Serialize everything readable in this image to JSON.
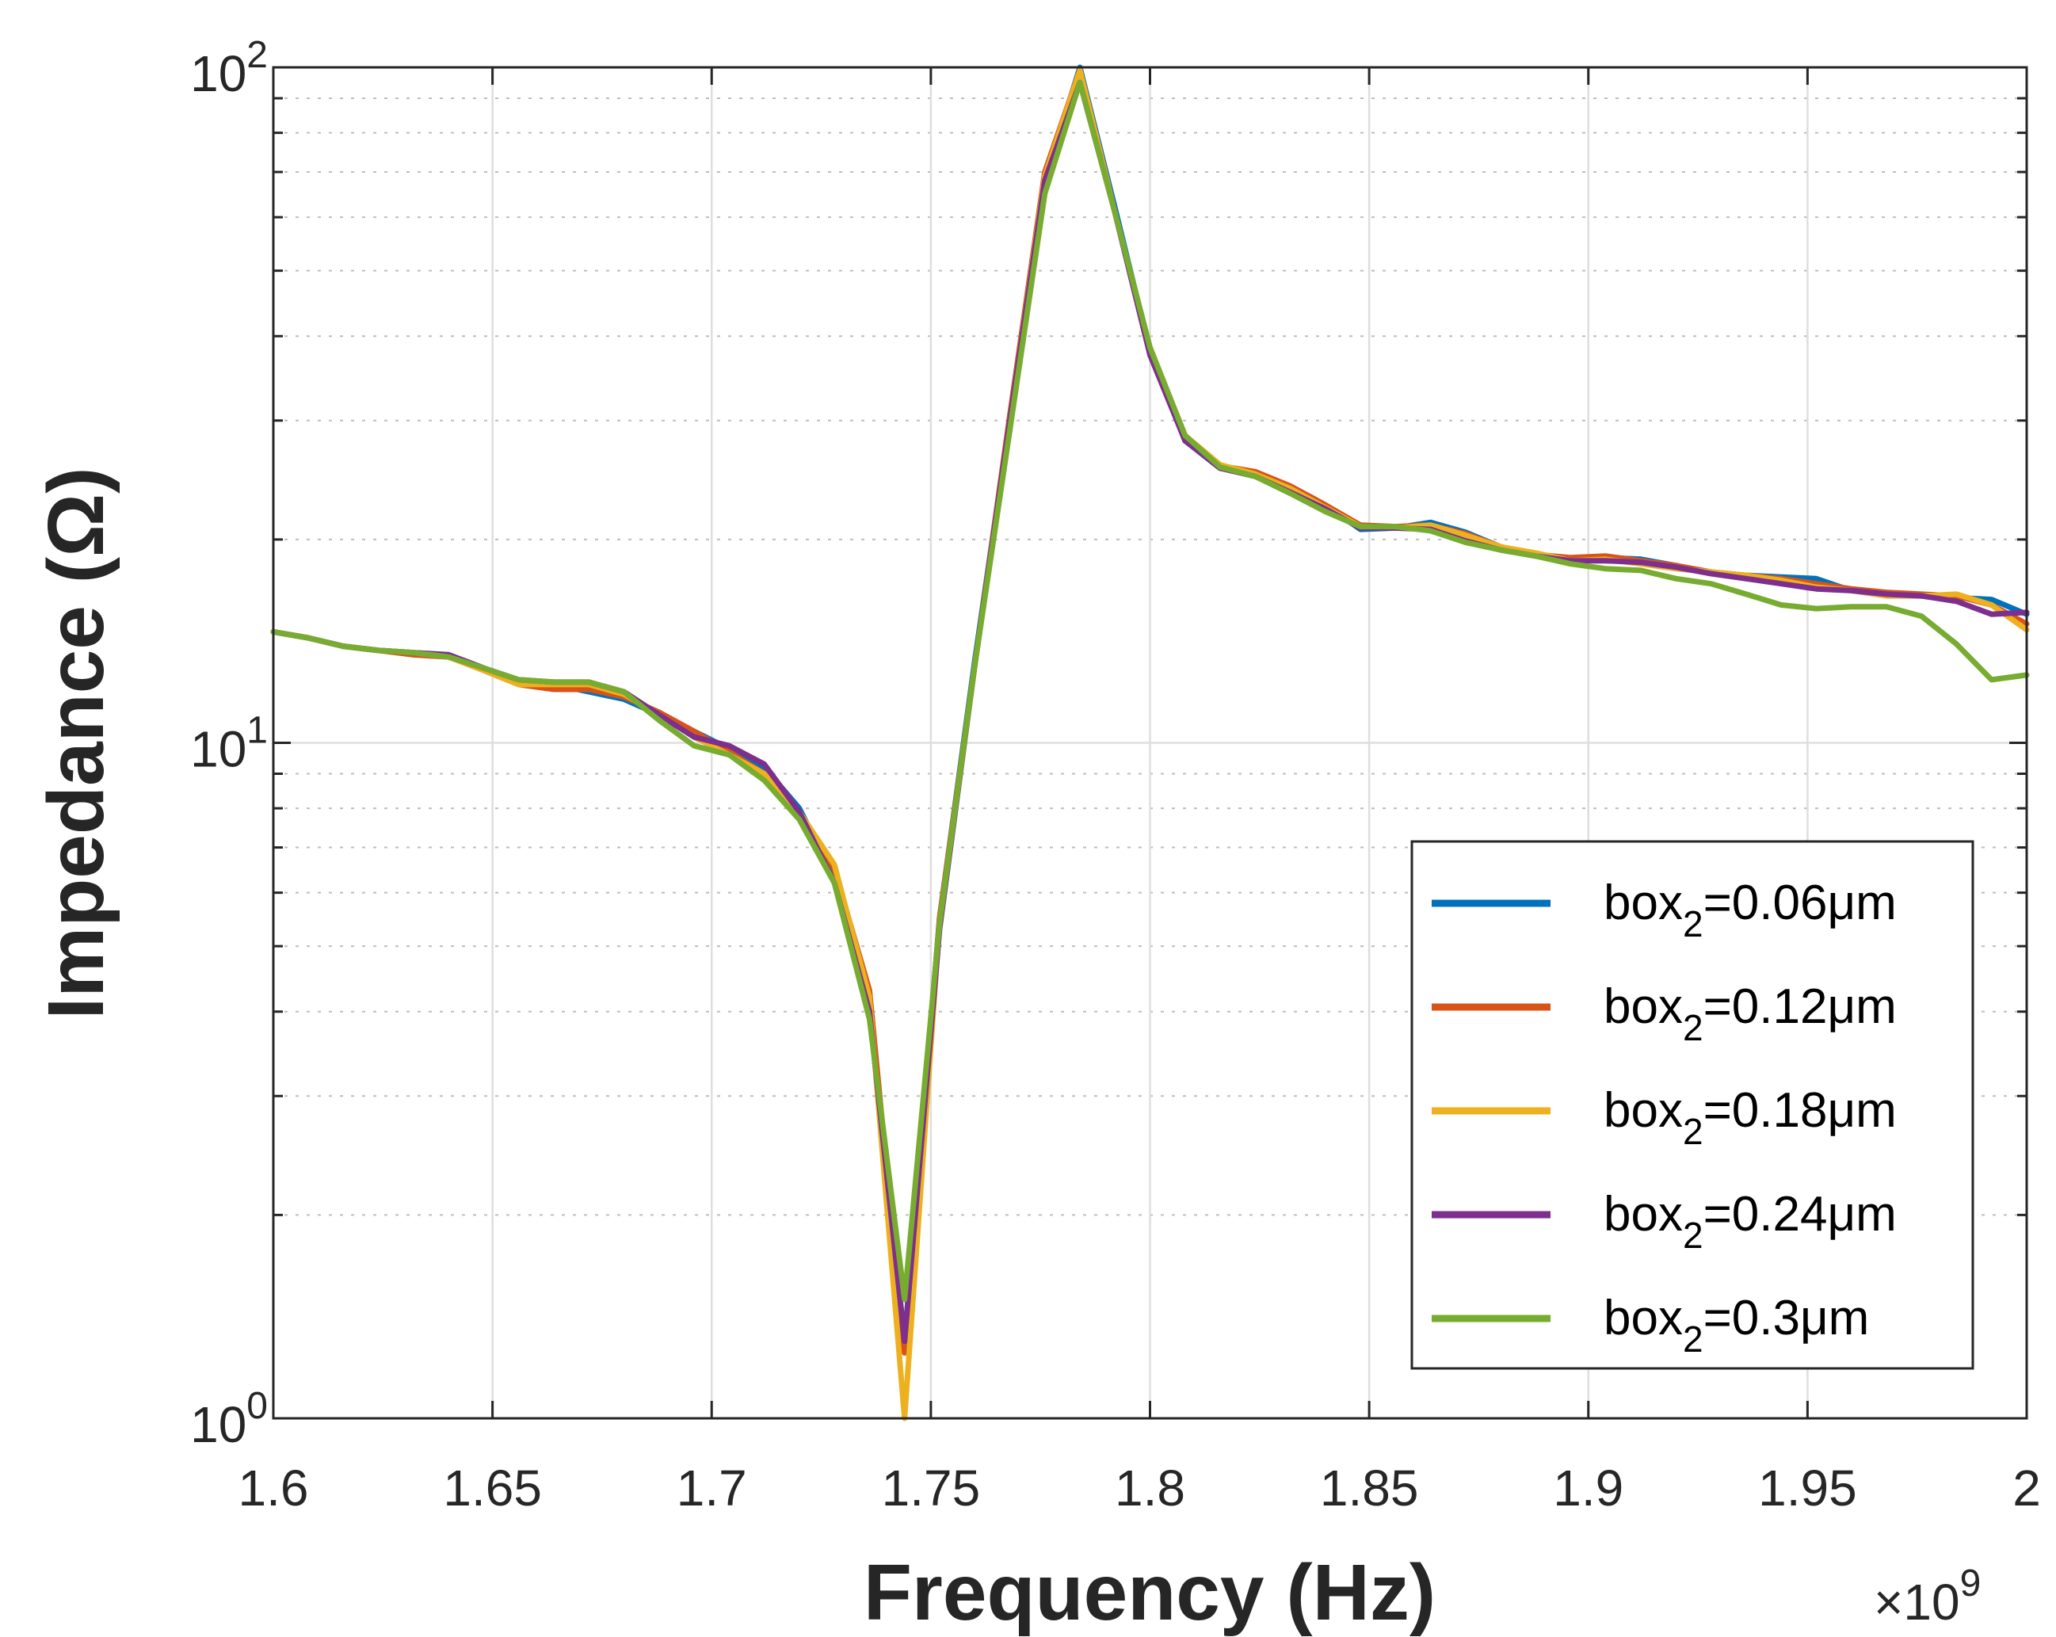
{
  "chart_data": {
    "type": "line",
    "xlabel": "Frequency (Hz)",
    "ylabel": "Impedance (Ω)",
    "x_exponent_label": "×10",
    "x_exponent_power": "9",
    "x_scale": 1000000000.0,
    "xlim": [
      1.6,
      2.0
    ],
    "ylim": [
      1,
      100
    ],
    "yscale": "log",
    "grid": true,
    "x_ticks": [
      1.6,
      1.65,
      1.7,
      1.75,
      1.8,
      1.85,
      1.9,
      1.95,
      2.0
    ],
    "x_tick_labels": [
      "1.6",
      "1.65",
      "1.7",
      "1.75",
      "1.8",
      "1.85",
      "1.9",
      "1.95",
      "2"
    ],
    "y_ticks": [
      1,
      10,
      100
    ],
    "y_tick_base": "10",
    "y_tick_powers": [
      "0",
      "1",
      "2"
    ],
    "legend_location": "bottom-right",
    "x": [
      1.6,
      1.608,
      1.616,
      1.624,
      1.632,
      1.64,
      1.648,
      1.656,
      1.664,
      1.672,
      1.68,
      1.688,
      1.696,
      1.704,
      1.712,
      1.72,
      1.728,
      1.736,
      1.744,
      1.752,
      1.76,
      1.768,
      1.776,
      1.784,
      1.792,
      1.8,
      1.808,
      1.816,
      1.824,
      1.832,
      1.84,
      1.848,
      1.856,
      1.864,
      1.872,
      1.88,
      1.888,
      1.896,
      1.904,
      1.912,
      1.92,
      1.928,
      1.936,
      1.944,
      1.952,
      1.96,
      1.968,
      1.976,
      1.984,
      1.992,
      2.0
    ],
    "series": [
      {
        "name": "box2=0.06μm",
        "legend_base": "box",
        "legend_sub": "2",
        "legend_value": "=0.06μm",
        "color": "#0072BD",
        "values": [
          14.6,
          14.3,
          13.9,
          13.7,
          13.6,
          13.5,
          12.9,
          12.3,
          12.2,
          11.9,
          11.6,
          11.0,
          10.4,
          9.8,
          9.2,
          8.0,
          6.3,
          4.0,
          1.3,
          5.5,
          13.2,
          30.0,
          68.0,
          100.0,
          62.0,
          38.0,
          28.0,
          25.5,
          25.0,
          24.0,
          22.5,
          20.7,
          20.8,
          21.2,
          20.5,
          19.5,
          19.0,
          18.6,
          18.8,
          18.7,
          18.3,
          17.8,
          17.7,
          17.6,
          17.5,
          16.8,
          16.6,
          16.5,
          16.4,
          16.3,
          15.5
        ]
      },
      {
        "name": "box2=0.12μm",
        "legend_base": "box",
        "legend_sub": "2",
        "legend_value": "=0.12μm",
        "color": "#D95319",
        "values": [
          14.6,
          14.3,
          13.9,
          13.7,
          13.5,
          13.4,
          12.8,
          12.2,
          12.0,
          12.0,
          11.7,
          11.1,
          10.4,
          9.7,
          9.0,
          7.9,
          6.5,
          4.3,
          1.25,
          5.5,
          13.0,
          30.5,
          70.0,
          99.0,
          61.0,
          38.0,
          28.0,
          25.7,
          25.2,
          24.0,
          22.5,
          21.0,
          20.9,
          21.0,
          20.4,
          19.5,
          19.0,
          18.8,
          18.9,
          18.6,
          18.3,
          17.9,
          17.7,
          17.5,
          17.2,
          16.9,
          16.7,
          16.6,
          16.5,
          16.0,
          15.0
        ]
      },
      {
        "name": "box2=0.18μm",
        "legend_base": "box",
        "legend_sub": "2",
        "legend_value": "=0.18μm",
        "color": "#EDB120",
        "values": [
          14.6,
          14.3,
          13.9,
          13.7,
          13.6,
          13.4,
          12.8,
          12.2,
          12.2,
          12.2,
          11.8,
          11.0,
          10.2,
          9.6,
          9.0,
          7.9,
          6.6,
          4.2,
          1.0,
          5.4,
          13.0,
          30.0,
          69.0,
          99.0,
          61.0,
          38.0,
          28.5,
          25.8,
          25.0,
          23.8,
          22.3,
          20.9,
          20.8,
          21.0,
          20.3,
          19.5,
          19.1,
          18.6,
          18.7,
          18.4,
          18.1,
          17.9,
          17.7,
          17.4,
          17.0,
          16.8,
          16.5,
          16.5,
          16.6,
          16.0,
          14.7
        ]
      },
      {
        "name": "box2=0.24μm",
        "legend_base": "box",
        "legend_sub": "2",
        "legend_value": "=0.24μm",
        "color": "#7E2F8E",
        "values": [
          14.6,
          14.3,
          13.9,
          13.7,
          13.6,
          13.5,
          12.9,
          12.4,
          12.3,
          12.3,
          11.9,
          11.0,
          10.2,
          9.9,
          9.3,
          7.9,
          6.2,
          4.0,
          1.3,
          5.3,
          13.0,
          30.0,
          68.0,
          95.0,
          61.0,
          37.5,
          28.0,
          25.5,
          24.8,
          23.5,
          22.2,
          20.8,
          20.8,
          20.7,
          19.9,
          19.3,
          18.9,
          18.6,
          18.6,
          18.5,
          18.2,
          17.8,
          17.5,
          17.2,
          16.9,
          16.8,
          16.6,
          16.5,
          16.2,
          15.5,
          15.6
        ]
      },
      {
        "name": "box2=0.3μm",
        "legend_base": "box",
        "legend_sub": "2",
        "legend_value": "=0.3μm",
        "color": "#77AC30",
        "values": [
          14.6,
          14.3,
          13.9,
          13.7,
          13.6,
          13.4,
          12.9,
          12.4,
          12.3,
          12.3,
          11.9,
          10.8,
          9.9,
          9.6,
          8.8,
          7.7,
          6.2,
          3.9,
          1.5,
          5.4,
          13.0,
          29.0,
          65.0,
          95.0,
          61.0,
          38.5,
          28.5,
          25.6,
          24.8,
          23.4,
          22.0,
          20.9,
          20.9,
          20.6,
          19.8,
          19.3,
          18.9,
          18.4,
          18.1,
          18.0,
          17.5,
          17.2,
          16.6,
          16.0,
          15.8,
          15.9,
          15.9,
          15.4,
          14.0,
          12.4,
          12.6
        ]
      }
    ]
  }
}
